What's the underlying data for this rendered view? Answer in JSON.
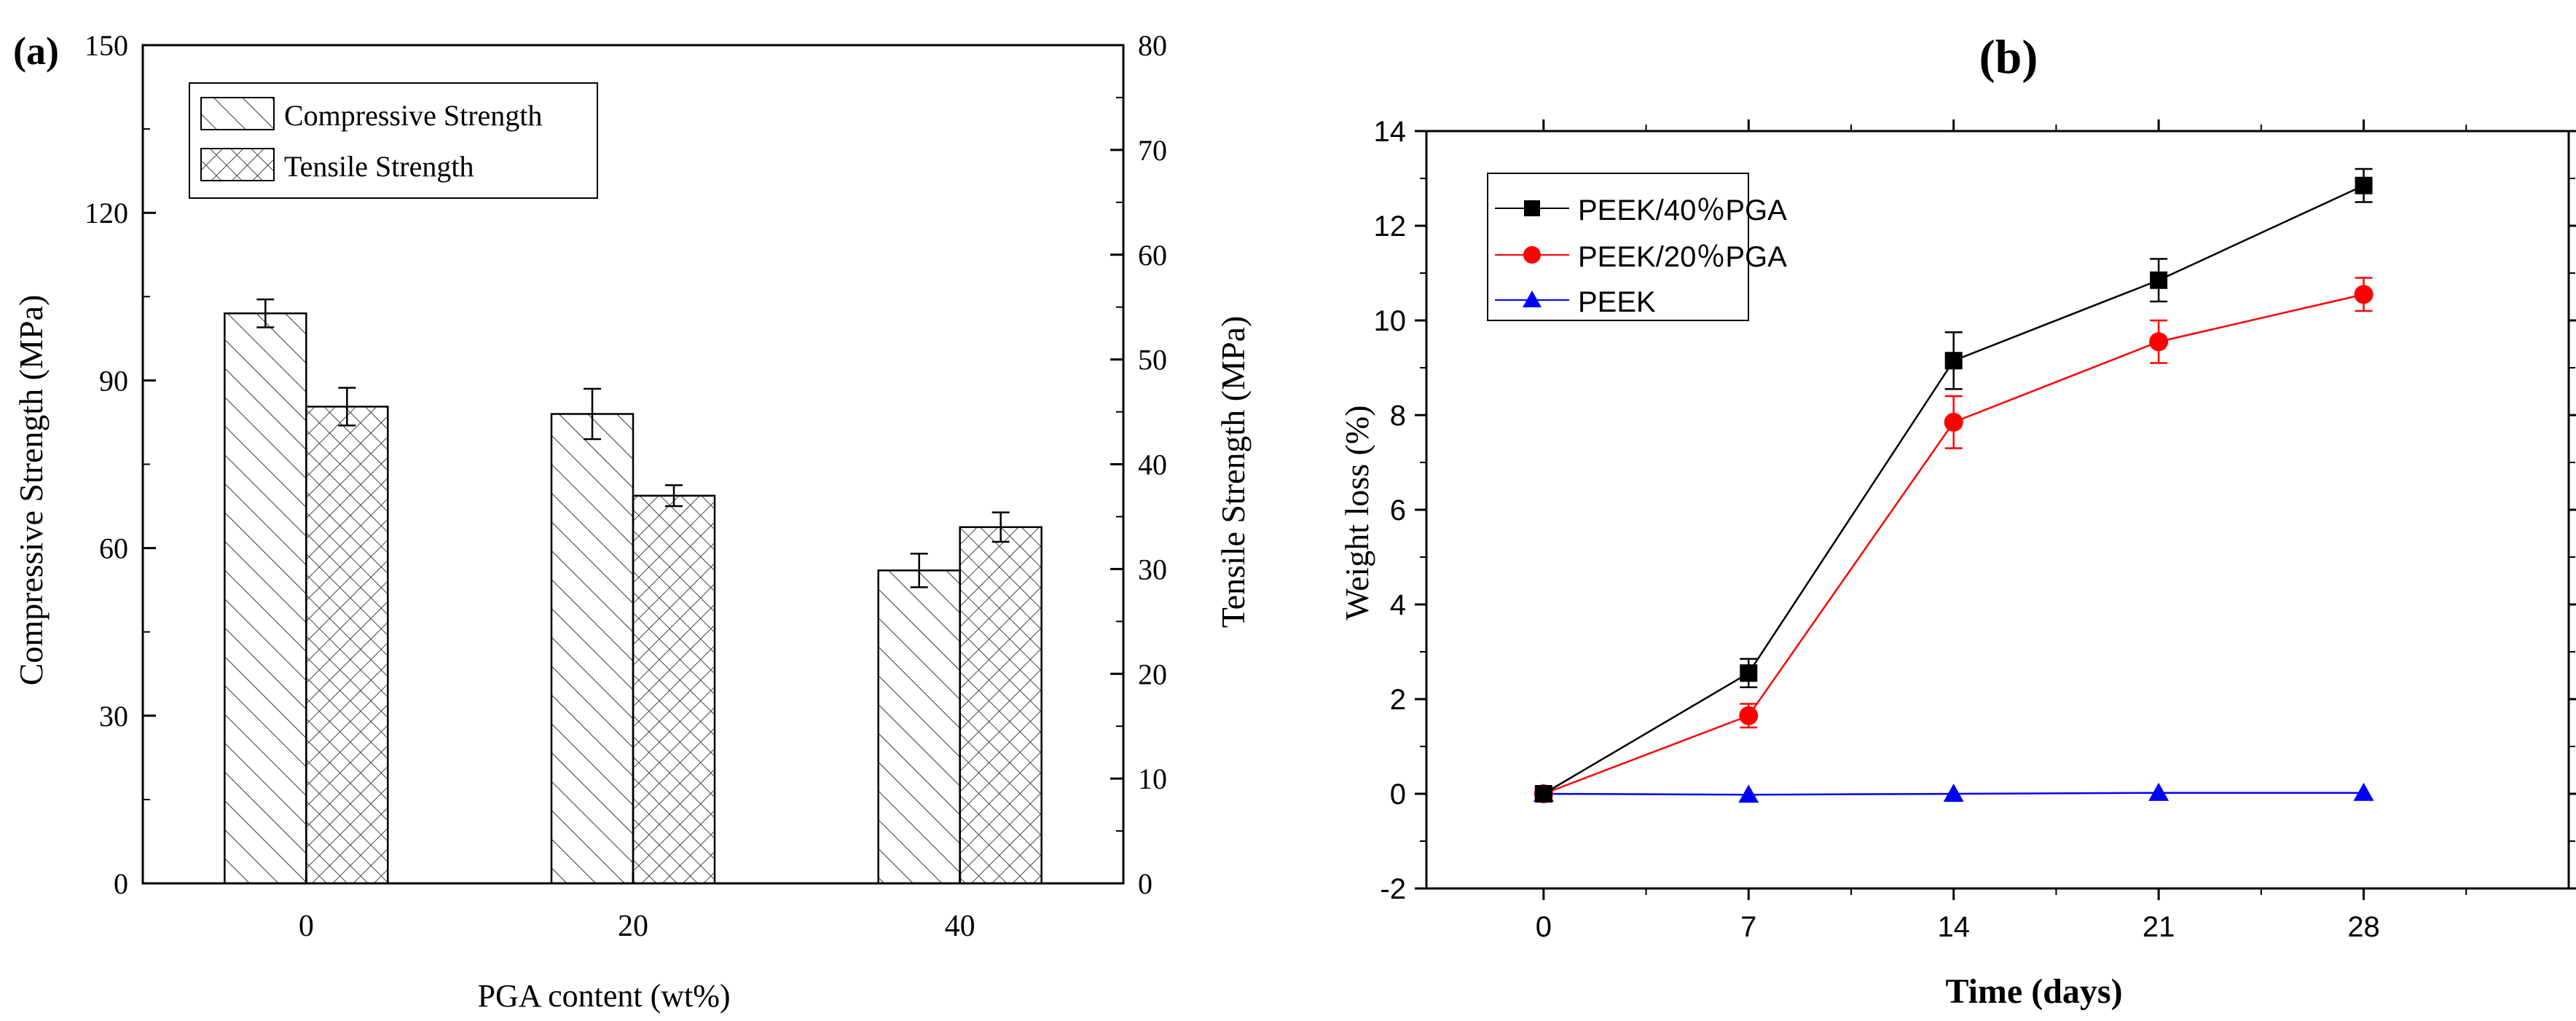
{
  "chart_data": [
    {
      "panel_label": "(a)",
      "type": "bar",
      "categories": [
        "0",
        "20",
        "40"
      ],
      "xlabel": "PGA content (wt%)",
      "ylabel": "Compressive Strength (MPa)",
      "ylabel_right": "Tensile Strength (MPa)",
      "ylim": [
        0,
        150
      ],
      "ylim_right": [
        0,
        80
      ],
      "yticks": [
        "0",
        "30",
        "60",
        "90",
        "120",
        "150"
      ],
      "yticks_right": [
        "0",
        "10",
        "20",
        "30",
        "40",
        "50",
        "60",
        "70",
        "80"
      ],
      "legend_position": "top-left",
      "series": [
        {
          "name": "Compressive Strength",
          "axis": "left",
          "values": [
            102,
            84,
            56
          ],
          "errors": [
            2.5,
            4.5,
            3
          ]
        },
        {
          "name": "Tensile Strength",
          "axis": "right",
          "values": [
            45.5,
            37,
            34
          ],
          "errors": [
            1.8,
            1.0,
            1.4
          ]
        }
      ]
    },
    {
      "panel_label": "(b)",
      "type": "line",
      "x": [
        0,
        7,
        14,
        21,
        28
      ],
      "xticks": [
        "0",
        "7",
        "14",
        "21",
        "28"
      ],
      "xlim": [
        -4,
        35
      ],
      "xlabel": "Time (days)",
      "ylabel": "Weight loss (%)",
      "ylim": [
        -2,
        14
      ],
      "yticks": [
        "-2",
        "0",
        "2",
        "4",
        "6",
        "8",
        "10",
        "12",
        "14"
      ],
      "legend_position": "top-left",
      "series": [
        {
          "name": "PEEK/40％PGA",
          "color": "#000000",
          "marker": "square",
          "values": [
            0,
            2.55,
            9.15,
            10.85,
            12.85
          ],
          "errors": [
            0.1,
            0.3,
            0.6,
            0.45,
            0.35
          ]
        },
        {
          "name": "PEEK/20％PGA",
          "color": "#ff0000",
          "marker": "circle",
          "values": [
            0,
            1.65,
            7.85,
            9.55,
            10.55
          ],
          "errors": [
            0.1,
            0.25,
            0.55,
            0.45,
            0.35
          ]
        },
        {
          "name": "PEEK",
          "color": "#0000ff",
          "marker": "triangle",
          "values": [
            0,
            -0.02,
            0.0,
            0.02,
            0.02
          ],
          "errors": [
            0,
            0,
            0,
            0,
            0
          ]
        }
      ]
    }
  ]
}
